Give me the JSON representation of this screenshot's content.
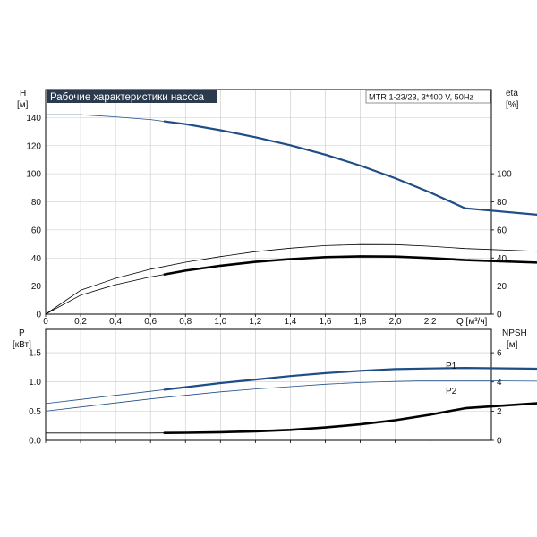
{
  "chart_data": [
    {
      "type": "line",
      "title": "Рабочие характеристики насоса",
      "model_label": "MTR 1-23/23, 3*400 V, 50Hz",
      "x": {
        "label": "Q [м³/ч]",
        "ticks": [
          0,
          0.2,
          0.4,
          0.6,
          0.8,
          1.0,
          1.2,
          1.4,
          1.6,
          1.8,
          2.0,
          2.2
        ],
        "tick_labels": [
          "0",
          "0,2",
          "0,4",
          "0,6",
          "0,8",
          "1,0",
          "1,2",
          "1,4",
          "1,6",
          "1,8",
          "2,0",
          "2,2"
        ],
        "range": [
          0,
          2.55
        ]
      },
      "y_left": {
        "label_top": "H",
        "label_unit": "[м]",
        "ticks": [
          0,
          20,
          40,
          60,
          80,
          100,
          120,
          140
        ],
        "range": [
          0,
          160
        ]
      },
      "y_right": {
        "label_top": "eta",
        "label_unit": "[%]",
        "ticks": [
          0,
          20,
          40,
          60,
          80,
          100
        ],
        "range": [
          0,
          160
        ]
      },
      "grid": true,
      "series": [
        {
          "axis": "left",
          "color": "#1f4e87",
          "style": "head",
          "thin_until": 0.68,
          "x": [
            0,
            0.2,
            0.4,
            0.6,
            0.8,
            1.0,
            1.2,
            1.4,
            1.6,
            1.8,
            2.0,
            2.2,
            2.4,
            2.98
          ],
          "values": [
            142,
            142,
            140.5,
            138.6,
            135.3,
            131,
            126,
            120.3,
            113.6,
            105.8,
            96.8,
            86.7,
            75.4,
            69
          ]
        },
        {
          "axis": "right",
          "color": "#000000",
          "style": "thin",
          "x": [
            0,
            0.2,
            0.4,
            0.6,
            0.8,
            1.0,
            1.2,
            1.4,
            1.6,
            1.8,
            2.0,
            2.2,
            2.4,
            2.98
          ],
          "values": [
            0,
            17,
            25.5,
            32,
            37,
            41,
            44.5,
            47,
            48.8,
            49.6,
            49.5,
            48.4,
            46.7,
            44
          ]
        },
        {
          "axis": "right",
          "color": "#000000",
          "style": "bold",
          "thin_until": 0.68,
          "x": [
            0,
            0.2,
            0.4,
            0.6,
            0.8,
            1.0,
            1.2,
            1.4,
            1.6,
            1.8,
            2.0,
            2.2,
            2.4,
            2.98
          ],
          "values": [
            0,
            13.5,
            21,
            26.5,
            31,
            34.5,
            37.2,
            39.2,
            40.6,
            41.2,
            41,
            40,
            38.5,
            36
          ]
        }
      ]
    },
    {
      "type": "line",
      "x": {
        "ticks": [
          0,
          0.2,
          0.4,
          0.6,
          0.8,
          1.0,
          1.2,
          1.4,
          1.6,
          1.8,
          2.0,
          2.2
        ],
        "range": [
          0,
          2.55
        ]
      },
      "y_left": {
        "label_top": "P",
        "label_unit": "[кВт]",
        "ticks": [
          0,
          0.5,
          1.0,
          1.5
        ],
        "tick_labels": [
          "0.0",
          "0.5",
          "1.0",
          "1.5"
        ],
        "range": [
          0,
          1.9
        ]
      },
      "y_right": {
        "label_top": "NPSH",
        "label_unit": "[м]",
        "ticks": [
          0,
          2,
          4,
          6
        ],
        "range": [
          0,
          7.6
        ]
      },
      "grid": true,
      "series": [
        {
          "name": "P1",
          "axis": "left",
          "color": "#1f4e87",
          "style": "power",
          "thin_until": 0.68,
          "x": [
            0,
            0.2,
            0.4,
            0.6,
            0.8,
            1.0,
            1.2,
            1.4,
            1.6,
            1.8,
            2.0,
            2.2,
            2.4,
            2.98
          ],
          "values": [
            0.63,
            0.7,
            0.77,
            0.84,
            0.91,
            0.98,
            1.04,
            1.1,
            1.15,
            1.19,
            1.22,
            1.23,
            1.24,
            1.22
          ]
        },
        {
          "name": "P2",
          "axis": "left",
          "color": "#1f4e87",
          "style": "thin",
          "x": [
            0,
            0.2,
            0.4,
            0.6,
            0.8,
            1.0,
            1.2,
            1.4,
            1.6,
            1.8,
            2.0,
            2.2,
            2.4,
            2.98
          ],
          "values": [
            0.5,
            0.57,
            0.64,
            0.71,
            0.77,
            0.83,
            0.88,
            0.92,
            0.96,
            0.99,
            1.01,
            1.02,
            1.02,
            1.01
          ]
        },
        {
          "axis": "right",
          "color": "#000000",
          "style": "bold",
          "thin_until": 0.68,
          "x": [
            0,
            0.2,
            0.4,
            0.6,
            0.8,
            1.0,
            1.2,
            1.4,
            1.6,
            1.8,
            2.0,
            2.2,
            2.4,
            2.98
          ],
          "values": [
            0.5,
            0.5,
            0.5,
            0.5,
            0.52,
            0.56,
            0.62,
            0.72,
            0.88,
            1.1,
            1.38,
            1.75,
            2.2,
            2.68
          ]
        }
      ]
    }
  ]
}
